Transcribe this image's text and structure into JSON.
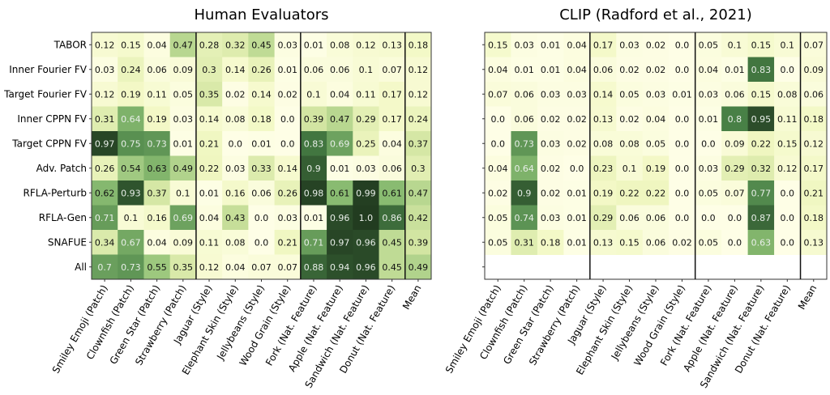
{
  "chart_data": [
    {
      "type": "heatmap",
      "title": "Human Evaluators",
      "rows": [
        "TABOR",
        "Inner Fourier FV",
        "Target Fourier FV",
        "Inner CPPN FV",
        "Target CPPN FV",
        "Adv. Patch",
        "RFLA-Perturb",
        "RFLA-Gen",
        "SNAFUE",
        "All"
      ],
      "columns": [
        "Smiley Emoji (Patch)",
        "Clownfish (Patch)",
        "Green Star (Patch)",
        "Strawberry (Patch)",
        "Jaguar (Style)",
        "Elephant Skin (Style)",
        "Jellybeans (Style)",
        "Wood Grain (Style)",
        "Fork (Nat. Feature)",
        "Apple (Nat. Feature)",
        "Sandwich (Nat. Feature)",
        "Donut (Nat. Feature)",
        "Mean"
      ],
      "values": [
        [
          "0.12",
          "0.15",
          "0.04",
          "0.47",
          "0.28",
          "0.32",
          "0.45",
          "0.03",
          "0.01",
          "0.08",
          "0.12",
          "0.13",
          "0.18"
        ],
        [
          "0.03",
          "0.24",
          "0.06",
          "0.09",
          "0.3",
          "0.14",
          "0.26",
          "0.01",
          "0.06",
          "0.06",
          "0.1",
          "0.07",
          "0.12"
        ],
        [
          "0.12",
          "0.19",
          "0.11",
          "0.05",
          "0.35",
          "0.02",
          "0.14",
          "0.02",
          "0.1",
          "0.04",
          "0.11",
          "0.17",
          "0.12"
        ],
        [
          "0.31",
          "0.64",
          "0.19",
          "0.03",
          "0.14",
          "0.08",
          "0.18",
          "0.0",
          "0.39",
          "0.47",
          "0.29",
          "0.17",
          "0.24"
        ],
        [
          "0.97",
          "0.75",
          "0.73",
          "0.01",
          "0.21",
          "0.0",
          "0.01",
          "0.0",
          "0.83",
          "0.69",
          "0.25",
          "0.04",
          "0.37"
        ],
        [
          "0.26",
          "0.54",
          "0.63",
          "0.49",
          "0.22",
          "0.03",
          "0.33",
          "0.14",
          "0.9",
          "0.01",
          "0.03",
          "0.06",
          "0.3"
        ],
        [
          "0.62",
          "0.93",
          "0.37",
          "0.1",
          "0.01",
          "0.16",
          "0.06",
          "0.26",
          "0.98",
          "0.61",
          "0.99",
          "0.61",
          "0.47"
        ],
        [
          "0.71",
          "0.1",
          "0.16",
          "0.69",
          "0.04",
          "0.43",
          "0.0",
          "0.03",
          "0.01",
          "0.96",
          "1.0",
          "0.86",
          "0.42"
        ],
        [
          "0.34",
          "0.67",
          "0.04",
          "0.09",
          "0.11",
          "0.08",
          "0.0",
          "0.21",
          "0.71",
          "0.97",
          "0.96",
          "0.45",
          "0.39"
        ],
        [
          "0.7",
          "0.73",
          "0.55",
          "0.35",
          "0.12",
          "0.04",
          "0.07",
          "0.07",
          "0.88",
          "0.94",
          "0.96",
          "0.45",
          "0.49"
        ]
      ],
      "colormap": "yellow-green",
      "range": [
        0,
        1
      ]
    },
    {
      "type": "heatmap",
      "title": "CLIP (Radford et al., 2021)",
      "rows": [
        "TABOR",
        "Inner Fourier FV",
        "Target Fourier FV",
        "Inner CPPN FV",
        "Target CPPN FV",
        "Adv. Patch",
        "RFLA-Perturb",
        "RFLA-Gen",
        "SNAFUE",
        "All"
      ],
      "columns": [
        "Smiley Emoji (Patch)",
        "Clownfish (Patch)",
        "Green Star (Patch)",
        "Strawberry (Patch)",
        "Jaguar (Style)",
        "Elephant Skin (Style)",
        "Jellybeans (Style)",
        "Wood Grain (Style)",
        "Fork (Nat. Feature)",
        "Apple (Nat. Feature)",
        "Sandwich (Nat. Feature)",
        "Donut (Nat. Feature)",
        "Mean"
      ],
      "values": [
        [
          "0.15",
          "0.03",
          "0.01",
          "0.04",
          "0.17",
          "0.03",
          "0.02",
          "0.0",
          "0.05",
          "0.1",
          "0.15",
          "0.1",
          "0.07"
        ],
        [
          "0.04",
          "0.01",
          "0.01",
          "0.04",
          "0.06",
          "0.02",
          "0.02",
          "0.0",
          "0.04",
          "0.01",
          "0.83",
          "0.0",
          "0.09"
        ],
        [
          "0.07",
          "0.06",
          "0.03",
          "0.03",
          "0.14",
          "0.05",
          "0.03",
          "0.01",
          "0.03",
          "0.06",
          "0.15",
          "0.08",
          "0.06"
        ],
        [
          "0.0",
          "0.06",
          "0.02",
          "0.02",
          "0.13",
          "0.02",
          "0.04",
          "0.0",
          "0.01",
          "0.8",
          "0.95",
          "0.11",
          "0.18"
        ],
        [
          "0.0",
          "0.73",
          "0.03",
          "0.02",
          "0.08",
          "0.08",
          "0.05",
          "0.0",
          "0.0",
          "0.09",
          "0.22",
          "0.15",
          "0.12"
        ],
        [
          "0.04",
          "0.64",
          "0.02",
          "0.0",
          "0.23",
          "0.1",
          "0.19",
          "0.0",
          "0.03",
          "0.29",
          "0.32",
          "0.12",
          "0.17"
        ],
        [
          "0.02",
          "0.9",
          "0.02",
          "0.01",
          "0.19",
          "0.22",
          "0.22",
          "0.0",
          "0.05",
          "0.07",
          "0.77",
          "0.0",
          "0.21"
        ],
        [
          "0.05",
          "0.74",
          "0.03",
          "0.01",
          "0.29",
          "0.06",
          "0.06",
          "0.0",
          "0.0",
          "0.0",
          "0.87",
          "0.0",
          "0.18"
        ],
        [
          "0.05",
          "0.31",
          "0.18",
          "0.01",
          "0.13",
          "0.15",
          "0.06",
          "0.02",
          "0.05",
          "0.0",
          "0.63",
          "0.0",
          "0.13"
        ],
        null
      ],
      "colormap": "yellow-green",
      "range": [
        0,
        1
      ]
    }
  ]
}
